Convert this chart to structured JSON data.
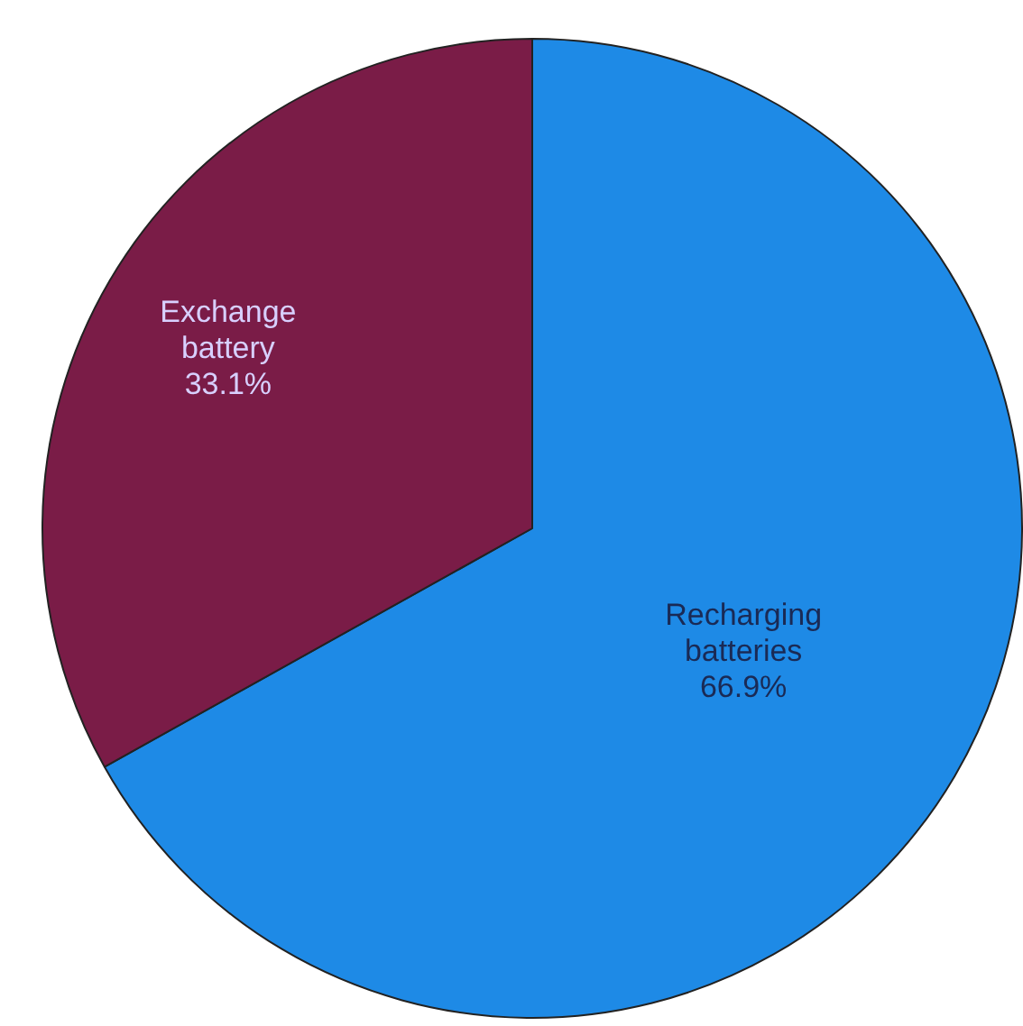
{
  "chart_data": {
    "type": "pie",
    "categories": [
      "Recharging batteries",
      "Exchange battery"
    ],
    "values": [
      66.9,
      33.1
    ],
    "colors": [
      "#1e8ae6",
      "#7a1c47"
    ],
    "value_labels": [
      "66.9%",
      "33.1%"
    ],
    "legend": false
  }
}
